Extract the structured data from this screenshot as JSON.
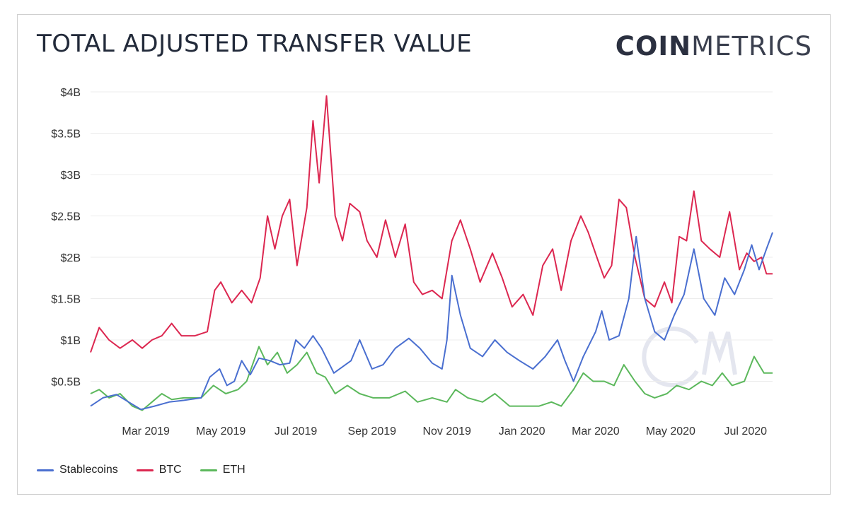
{
  "header": {
    "title": "TOTAL ADJUSTED TRANSFER VALUE",
    "logo_bold": "COIN",
    "logo_light": "METRICS"
  },
  "colors": {
    "Stablecoins": "#4a6fd0",
    "BTC": "#dc2750",
    "ETH": "#5cb85c",
    "grid": "#ececec",
    "watermark": "#e4e6ef"
  },
  "chart_data": {
    "type": "line",
    "title": "TOTAL ADJUSTED TRANSFER VALUE",
    "xlabel": "",
    "ylabel": "",
    "x_range": [
      "2019-01-15",
      "2020-07-23"
    ],
    "x_ticks": [
      {
        "date": "2019-03-01",
        "label": "Mar 2019"
      },
      {
        "date": "2019-05-01",
        "label": "May 2019"
      },
      {
        "date": "2019-07-01",
        "label": "Jul 2019"
      },
      {
        "date": "2019-09-01",
        "label": "Sep 2019"
      },
      {
        "date": "2019-11-01",
        "label": "Nov 2019"
      },
      {
        "date": "2020-01-01",
        "label": "Jan 2020"
      },
      {
        "date": "2020-03-01",
        "label": "Mar 2020"
      },
      {
        "date": "2020-05-01",
        "label": "May 2020"
      },
      {
        "date": "2020-07-01",
        "label": "Jul 2020"
      }
    ],
    "y_ticks": [
      {
        "value": 0.5,
        "label": "$0.5B"
      },
      {
        "value": 1,
        "label": "$1B"
      },
      {
        "value": 1.5,
        "label": "$1.5B"
      },
      {
        "value": 2,
        "label": "$2B"
      },
      {
        "value": 2.5,
        "label": "$2.5B"
      },
      {
        "value": 3,
        "label": "$3B"
      },
      {
        "value": 3.5,
        "label": "$3.5B"
      },
      {
        "value": 4,
        "label": "$4B"
      }
    ],
    "ylim": [
      0,
      4
    ],
    "grid": true,
    "legend_position": "bottom-left",
    "series": [
      {
        "name": "Stablecoins",
        "color": "#4a6fd0",
        "points": [
          [
            "2019-01-15",
            0.2
          ],
          [
            "2019-01-25",
            0.3
          ],
          [
            "2019-02-05",
            0.34
          ],
          [
            "2019-02-15",
            0.25
          ],
          [
            "2019-02-25",
            0.16
          ],
          [
            "2019-03-08",
            0.2
          ],
          [
            "2019-03-20",
            0.25
          ],
          [
            "2019-04-01",
            0.27
          ],
          [
            "2019-04-15",
            0.3
          ],
          [
            "2019-04-22",
            0.55
          ],
          [
            "2019-04-30",
            0.65
          ],
          [
            "2019-05-06",
            0.45
          ],
          [
            "2019-05-12",
            0.5
          ],
          [
            "2019-05-18",
            0.75
          ],
          [
            "2019-05-25",
            0.58
          ],
          [
            "2019-06-01",
            0.78
          ],
          [
            "2019-06-10",
            0.75
          ],
          [
            "2019-06-18",
            0.7
          ],
          [
            "2019-06-26",
            0.72
          ],
          [
            "2019-07-01",
            1.0
          ],
          [
            "2019-07-08",
            0.9
          ],
          [
            "2019-07-15",
            1.05
          ],
          [
            "2019-07-22",
            0.9
          ],
          [
            "2019-08-01",
            0.6
          ],
          [
            "2019-08-15",
            0.75
          ],
          [
            "2019-08-22",
            1.0
          ],
          [
            "2019-09-01",
            0.65
          ],
          [
            "2019-09-10",
            0.7
          ],
          [
            "2019-09-20",
            0.9
          ],
          [
            "2019-10-01",
            1.02
          ],
          [
            "2019-10-10",
            0.9
          ],
          [
            "2019-10-20",
            0.72
          ],
          [
            "2019-10-28",
            0.65
          ],
          [
            "2019-11-01",
            1.0
          ],
          [
            "2019-11-05",
            1.78
          ],
          [
            "2019-11-12",
            1.3
          ],
          [
            "2019-11-20",
            0.9
          ],
          [
            "2019-11-30",
            0.8
          ],
          [
            "2019-12-10",
            1.0
          ],
          [
            "2019-12-20",
            0.85
          ],
          [
            "2019-12-30",
            0.75
          ],
          [
            "2020-01-10",
            0.65
          ],
          [
            "2020-01-20",
            0.8
          ],
          [
            "2020-01-30",
            1.0
          ],
          [
            "2020-02-05",
            0.75
          ],
          [
            "2020-02-12",
            0.5
          ],
          [
            "2020-02-20",
            0.8
          ],
          [
            "2020-03-01",
            1.1
          ],
          [
            "2020-03-06",
            1.35
          ],
          [
            "2020-03-12",
            1.0
          ],
          [
            "2020-03-20",
            1.05
          ],
          [
            "2020-03-28",
            1.5
          ],
          [
            "2020-04-03",
            2.25
          ],
          [
            "2020-04-10",
            1.5
          ],
          [
            "2020-04-18",
            1.1
          ],
          [
            "2020-04-26",
            1.0
          ],
          [
            "2020-05-04",
            1.3
          ],
          [
            "2020-05-12",
            1.55
          ],
          [
            "2020-05-20",
            2.1
          ],
          [
            "2020-05-28",
            1.5
          ],
          [
            "2020-06-06",
            1.3
          ],
          [
            "2020-06-14",
            1.75
          ],
          [
            "2020-06-22",
            1.55
          ],
          [
            "2020-06-30",
            1.85
          ],
          [
            "2020-07-06",
            2.15
          ],
          [
            "2020-07-12",
            1.85
          ],
          [
            "2020-07-18",
            2.1
          ],
          [
            "2020-07-23",
            2.3
          ]
        ]
      },
      {
        "name": "BTC",
        "color": "#dc2750",
        "points": [
          [
            "2019-01-15",
            0.85
          ],
          [
            "2019-01-22",
            1.15
          ],
          [
            "2019-01-30",
            1.0
          ],
          [
            "2019-02-08",
            0.9
          ],
          [
            "2019-02-18",
            1.0
          ],
          [
            "2019-02-26",
            0.9
          ],
          [
            "2019-03-06",
            1.0
          ],
          [
            "2019-03-14",
            1.05
          ],
          [
            "2019-03-22",
            1.2
          ],
          [
            "2019-03-30",
            1.05
          ],
          [
            "2019-04-10",
            1.05
          ],
          [
            "2019-04-20",
            1.1
          ],
          [
            "2019-04-26",
            1.6
          ],
          [
            "2019-05-01",
            1.7
          ],
          [
            "2019-05-10",
            1.45
          ],
          [
            "2019-05-18",
            1.6
          ],
          [
            "2019-05-26",
            1.45
          ],
          [
            "2019-06-02",
            1.75
          ],
          [
            "2019-06-08",
            2.5
          ],
          [
            "2019-06-14",
            2.1
          ],
          [
            "2019-06-20",
            2.5
          ],
          [
            "2019-06-26",
            2.7
          ],
          [
            "2019-07-02",
            1.9
          ],
          [
            "2019-07-10",
            2.6
          ],
          [
            "2019-07-15",
            3.65
          ],
          [
            "2019-07-20",
            2.9
          ],
          [
            "2019-07-26",
            3.95
          ],
          [
            "2019-08-02",
            2.5
          ],
          [
            "2019-08-08",
            2.2
          ],
          [
            "2019-08-14",
            2.65
          ],
          [
            "2019-08-22",
            2.55
          ],
          [
            "2019-08-28",
            2.2
          ],
          [
            "2019-09-05",
            2.0
          ],
          [
            "2019-09-12",
            2.45
          ],
          [
            "2019-09-20",
            2.0
          ],
          [
            "2019-09-28",
            2.4
          ],
          [
            "2019-10-05",
            1.7
          ],
          [
            "2019-10-12",
            1.55
          ],
          [
            "2019-10-20",
            1.6
          ],
          [
            "2019-10-28",
            1.5
          ],
          [
            "2019-11-05",
            2.2
          ],
          [
            "2019-11-12",
            2.45
          ],
          [
            "2019-11-20",
            2.1
          ],
          [
            "2019-11-28",
            1.7
          ],
          [
            "2019-12-08",
            2.05
          ],
          [
            "2019-12-16",
            1.75
          ],
          [
            "2019-12-24",
            1.4
          ],
          [
            "2020-01-02",
            1.55
          ],
          [
            "2020-01-10",
            1.3
          ],
          [
            "2020-01-18",
            1.9
          ],
          [
            "2020-01-26",
            2.1
          ],
          [
            "2020-02-02",
            1.6
          ],
          [
            "2020-02-10",
            2.2
          ],
          [
            "2020-02-18",
            2.5
          ],
          [
            "2020-02-24",
            2.3
          ],
          [
            "2020-03-02",
            2.0
          ],
          [
            "2020-03-08",
            1.75
          ],
          [
            "2020-03-14",
            1.9
          ],
          [
            "2020-03-20",
            2.7
          ],
          [
            "2020-03-26",
            2.6
          ],
          [
            "2020-04-02",
            2.0
          ],
          [
            "2020-04-10",
            1.5
          ],
          [
            "2020-04-18",
            1.4
          ],
          [
            "2020-04-26",
            1.7
          ],
          [
            "2020-05-02",
            1.45
          ],
          [
            "2020-05-08",
            2.25
          ],
          [
            "2020-05-14",
            2.2
          ],
          [
            "2020-05-20",
            2.8
          ],
          [
            "2020-05-26",
            2.2
          ],
          [
            "2020-06-02",
            2.1
          ],
          [
            "2020-06-10",
            2.0
          ],
          [
            "2020-06-18",
            2.55
          ],
          [
            "2020-06-26",
            1.85
          ],
          [
            "2020-07-02",
            2.05
          ],
          [
            "2020-07-08",
            1.95
          ],
          [
            "2020-07-14",
            2.0
          ],
          [
            "2020-07-18",
            1.8
          ],
          [
            "2020-07-23",
            1.8
          ]
        ]
      },
      {
        "name": "ETH",
        "color": "#5cb85c",
        "points": [
          [
            "2019-01-15",
            0.35
          ],
          [
            "2019-01-22",
            0.4
          ],
          [
            "2019-01-30",
            0.3
          ],
          [
            "2019-02-08",
            0.35
          ],
          [
            "2019-02-18",
            0.2
          ],
          [
            "2019-02-26",
            0.15
          ],
          [
            "2019-03-06",
            0.25
          ],
          [
            "2019-03-14",
            0.35
          ],
          [
            "2019-03-22",
            0.28
          ],
          [
            "2019-04-01",
            0.3
          ],
          [
            "2019-04-15",
            0.3
          ],
          [
            "2019-04-25",
            0.45
          ],
          [
            "2019-05-05",
            0.35
          ],
          [
            "2019-05-15",
            0.4
          ],
          [
            "2019-05-22",
            0.5
          ],
          [
            "2019-06-01",
            0.92
          ],
          [
            "2019-06-08",
            0.7
          ],
          [
            "2019-06-16",
            0.85
          ],
          [
            "2019-06-24",
            0.6
          ],
          [
            "2019-07-02",
            0.7
          ],
          [
            "2019-07-10",
            0.85
          ],
          [
            "2019-07-18",
            0.6
          ],
          [
            "2019-07-25",
            0.55
          ],
          [
            "2019-08-02",
            0.35
          ],
          [
            "2019-08-12",
            0.45
          ],
          [
            "2019-08-22",
            0.35
          ],
          [
            "2019-09-02",
            0.3
          ],
          [
            "2019-09-15",
            0.3
          ],
          [
            "2019-09-28",
            0.38
          ],
          [
            "2019-10-08",
            0.25
          ],
          [
            "2019-10-20",
            0.3
          ],
          [
            "2019-11-01",
            0.25
          ],
          [
            "2019-11-08",
            0.4
          ],
          [
            "2019-11-18",
            0.3
          ],
          [
            "2019-11-30",
            0.25
          ],
          [
            "2019-12-10",
            0.35
          ],
          [
            "2019-12-22",
            0.2
          ],
          [
            "2020-01-05",
            0.2
          ],
          [
            "2020-01-15",
            0.2
          ],
          [
            "2020-01-25",
            0.25
          ],
          [
            "2020-02-02",
            0.2
          ],
          [
            "2020-02-12",
            0.4
          ],
          [
            "2020-02-20",
            0.6
          ],
          [
            "2020-02-28",
            0.5
          ],
          [
            "2020-03-08",
            0.5
          ],
          [
            "2020-03-16",
            0.45
          ],
          [
            "2020-03-24",
            0.7
          ],
          [
            "2020-04-02",
            0.5
          ],
          [
            "2020-04-10",
            0.35
          ],
          [
            "2020-04-18",
            0.3
          ],
          [
            "2020-04-28",
            0.35
          ],
          [
            "2020-05-06",
            0.45
          ],
          [
            "2020-05-16",
            0.4
          ],
          [
            "2020-05-26",
            0.5
          ],
          [
            "2020-06-04",
            0.45
          ],
          [
            "2020-06-12",
            0.6
          ],
          [
            "2020-06-20",
            0.45
          ],
          [
            "2020-06-30",
            0.5
          ],
          [
            "2020-07-08",
            0.8
          ],
          [
            "2020-07-16",
            0.6
          ],
          [
            "2020-07-23",
            0.6
          ]
        ]
      }
    ]
  }
}
